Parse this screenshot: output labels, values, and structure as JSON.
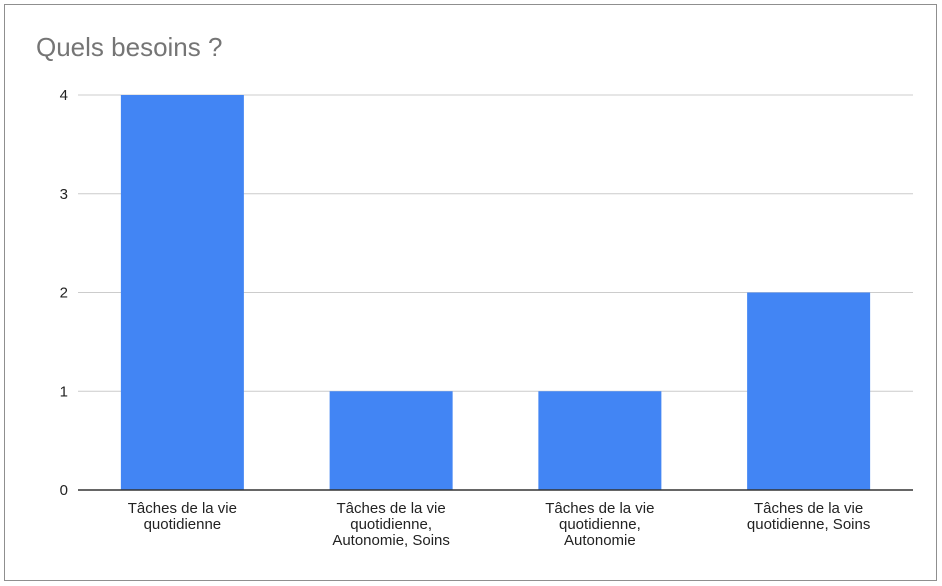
{
  "chart_data": {
    "type": "bar",
    "title": "Quels besoins ?",
    "categories": [
      [
        "Tâches de la vie",
        "quotidienne"
      ],
      [
        "Tâches de la vie",
        "quotidienne,",
        "Autonomie, Soins"
      ],
      [
        "Tâches de la vie",
        "quotidienne,",
        "Autonomie"
      ],
      [
        "Tâches de la vie",
        "quotidienne, Soins"
      ]
    ],
    "values": [
      4,
      1,
      1,
      2
    ],
    "xlabel": "",
    "ylabel": "",
    "ylim": [
      0,
      4
    ],
    "yticks": [
      "0",
      "1",
      "2",
      "3",
      "4"
    ],
    "grid": true,
    "legend": "none",
    "colors": {
      "bar": "#4285f4",
      "grid": "#cccccc",
      "axis": "#333333",
      "title": "#757575",
      "text": "#222222"
    }
  }
}
